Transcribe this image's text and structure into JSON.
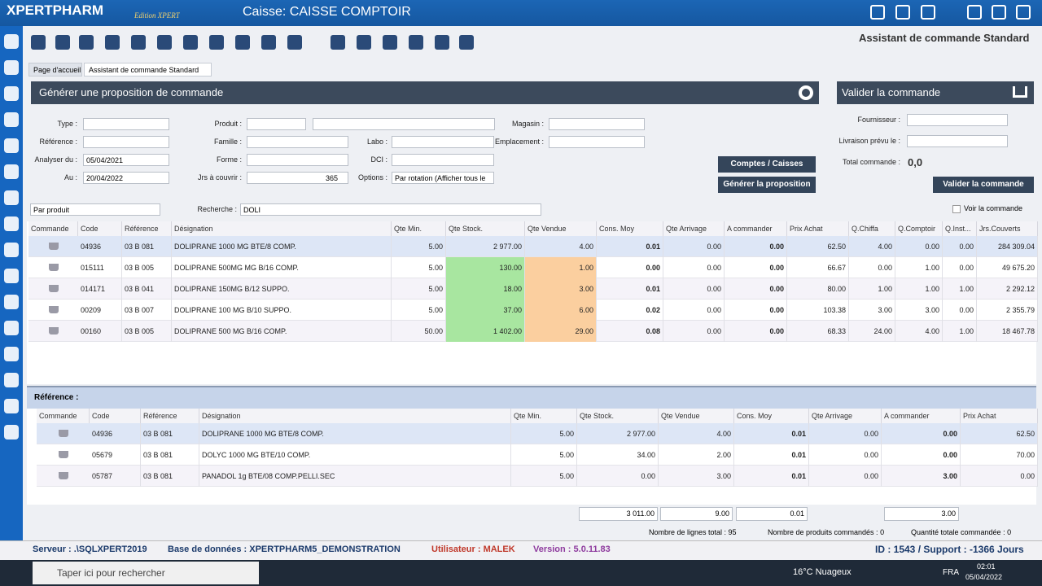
{
  "titlebar": {
    "brand": "XPERTPHARM",
    "edition": "Edition XPERT",
    "caisse": "Caisse: CAISSE COMPTOIR"
  },
  "header": {
    "title": "Assistant de commande Standard"
  },
  "tabs": [
    "Page d'accueil",
    "Assistant de commande Standard"
  ],
  "proposal": {
    "title": "Générer une proposition de commande",
    "fields": [
      {
        "label": "Type :"
      },
      {
        "label": "Référence :"
      },
      {
        "label": "Analyser du :",
        "value": "05/04/2021"
      },
      {
        "label": "Au :",
        "value": "20/04/2022"
      },
      {
        "label": "Produit :"
      },
      {
        "label": "Famille :"
      },
      {
        "label": "Forme :"
      },
      {
        "label": "Jrs à couvrir :",
        "value": "365"
      },
      {
        "label": "Labo :"
      },
      {
        "label": "DCI :"
      },
      {
        "label": "Options :",
        "value": "Par rotation (Afficher tous le"
      },
      {
        "label": "Magasin :"
      },
      {
        "label": "Emplacement :"
      }
    ],
    "buttons": [
      "Comptes / Caisses",
      "Générer la proposition"
    ]
  },
  "validate": {
    "title": "Valider la commande",
    "fournisseur": "Fournisseur :",
    "livraison": "Livraison prévu le :",
    "total_label": "Total commande :",
    "total": "0,0",
    "button": "Valider la commande"
  },
  "filter": {
    "mode": "Par produit",
    "search_label": "Recherche :",
    "search": "DOLI",
    "checkbox": "Voir la commande"
  },
  "grid": {
    "columns": [
      "Commande",
      "Code",
      "Référence",
      "Désignation",
      "Qte Min.",
      "Qte Stock.",
      "Qte Vendue",
      "Cons. Moy",
      "Qte Arrivage",
      "A commander",
      "Prix Achat",
      "Q.Chiffa",
      "Q.Comptoir",
      "Q.Inst...",
      "Jrs.Couverts"
    ],
    "rows": [
      [
        "04936",
        "03 B 081",
        "DOLIPRANE 1000 MG BTE/8 COMP.",
        "5.00",
        "2 977.00",
        "4.00",
        "0.01",
        "0.00",
        "0.00",
        "62.50",
        "4.00",
        "0.00",
        "0.00",
        "284 309.04"
      ],
      [
        "015111",
        "03 B 005",
        "DOLIPRANE 500MG MG B/16 COMP.",
        "5.00",
        "130.00",
        "1.00",
        "0.00",
        "0.00",
        "0.00",
        "66.67",
        "0.00",
        "1.00",
        "0.00",
        "49 675.20"
      ],
      [
        "014171",
        "03 B 041",
        "DOLIPRANE 150MG  B/12 SUPPO.",
        "5.00",
        "18.00",
        "3.00",
        "0.01",
        "0.00",
        "0.00",
        "80.00",
        "1.00",
        "1.00",
        "1.00",
        "2 292.12"
      ],
      [
        "00209",
        "03 B 007",
        "DOLIPRANE 100 MG B/10 SUPPO.",
        "5.00",
        "37.00",
        "6.00",
        "0.02",
        "0.00",
        "0.00",
        "103.38",
        "3.00",
        "3.00",
        "0.00",
        "2 355.79"
      ],
      [
        "00160",
        "03 B 005",
        "DOLIPRANE 500 MG B/16 COMP.",
        "50.00",
        "1 402.00",
        "29.00",
        "0.08",
        "0.00",
        "0.00",
        "68.33",
        "24.00",
        "4.00",
        "1.00",
        "18 467.78"
      ]
    ]
  },
  "reference": {
    "title": "Référence :",
    "columns": [
      "Commande",
      "Code",
      "Référence",
      "Désignation",
      "Qte Min.",
      "Qte Stock.",
      "Qte Vendue",
      "Cons. Moy",
      "Qte Arrivage",
      "A commander",
      "Prix Achat"
    ],
    "rows": [
      [
        "04936",
        "03 B 081",
        "DOLIPRANE 1000 MG BTE/8 COMP.",
        "5.00",
        "2 977.00",
        "4.00",
        "0.01",
        "0.00",
        "0.00",
        "62.50"
      ],
      [
        "05679",
        "03 B 081",
        "DOLYC 1000 MG BTE/10 COMP.",
        "5.00",
        "34.00",
        "2.00",
        "0.01",
        "0.00",
        "0.00",
        "70.00"
      ],
      [
        "05787",
        "03 B 081",
        "PANADOL 1g BTE/08 COMP.PELLI.SEC",
        "5.00",
        "0.00",
        "3.00",
        "0.01",
        "0.00",
        "3.00",
        "0.00"
      ]
    ],
    "totals": {
      "stock": "3 011.00",
      "vendue": "9.00",
      "cons": "0.01",
      "commander": "3.00"
    }
  },
  "summary": [
    "Nombre de lignes  total : 95",
    "Nombre de produits commandés : 0",
    "Quantité totale commandée : 0"
  ],
  "status": {
    "server": "Serveur : .\\SQLXPERT2019",
    "database": "Base de données : XPERTPHARM5_DEMONSTRATION",
    "user": "Utilisateur : MALEK",
    "version": "Version : 5.0.11.83",
    "support": "ID : 1543 / Support : -1366 Jours"
  },
  "taskbar": {
    "search": "Taper ici pour rechercher",
    "weather": "16°C  Nuageux",
    "lang": "FRA",
    "time": "02:01",
    "date": "05/04/2022"
  }
}
